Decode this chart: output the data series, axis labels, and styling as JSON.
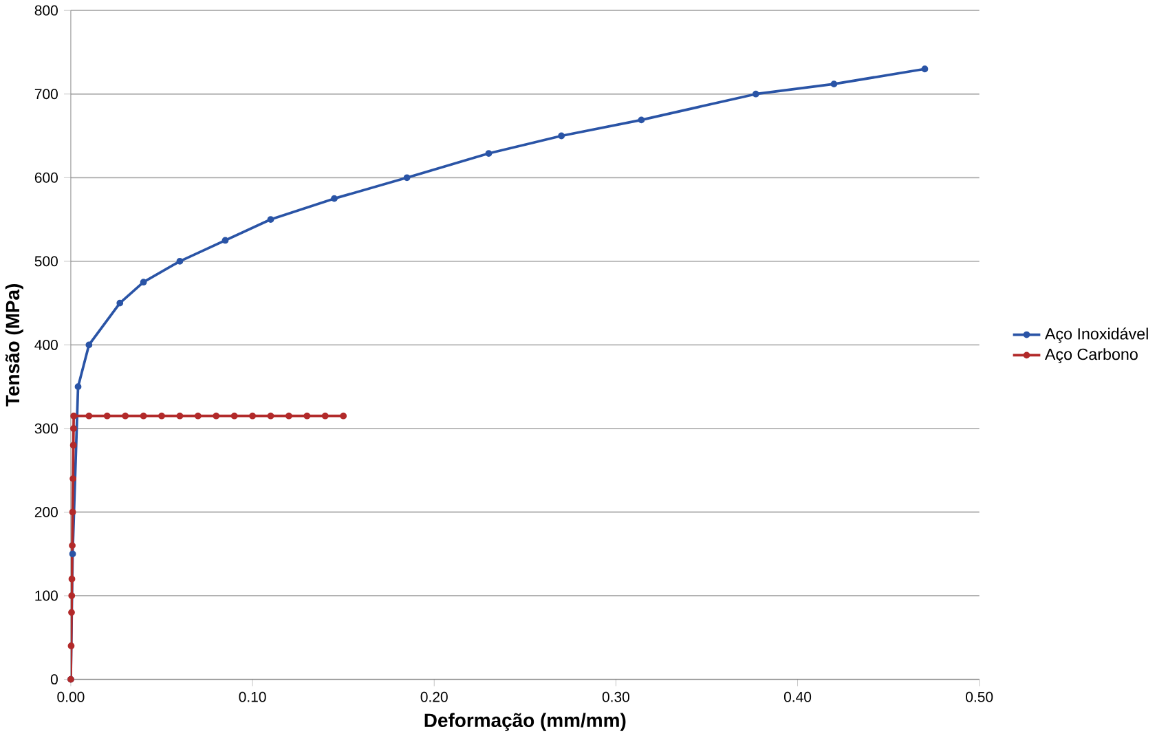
{
  "chart_data": {
    "type": "line",
    "xlabel": "Deformação (mm/mm)",
    "ylabel": "Tensão (MPa)",
    "xlim": [
      0,
      0.5
    ],
    "xticks": [
      {
        "value": 0,
        "label": "0.00"
      },
      {
        "value": 0.1,
        "label": "0.10"
      },
      {
        "value": 0.2,
        "label": "0.20"
      },
      {
        "value": 0.3,
        "label": "0.30"
      },
      {
        "value": 0.4,
        "label": "0.40"
      },
      {
        "value": 0.5,
        "label": "0.50"
      }
    ],
    "ylim": [
      0,
      800
    ],
    "yticks": [
      0,
      100,
      200,
      300,
      400,
      500,
      600,
      700,
      800
    ],
    "grid": "y",
    "legend": "right",
    "marker": "circle",
    "series": [
      {
        "name": "Aço Inoxidável",
        "color": "#2a54a6",
        "x": [
          0,
          0.001,
          0.002,
          0.004,
          0.01,
          0.027,
          0.04,
          0.06,
          0.085,
          0.11,
          0.145,
          0.185,
          0.23,
          0.27,
          0.314,
          0.377,
          0.42,
          0.47
        ],
        "values": [
          0,
          150,
          null,
          350,
          400,
          450,
          475,
          500,
          525,
          550,
          575,
          600,
          629,
          650,
          669,
          700,
          712,
          730
        ]
      },
      {
        "name": "Aço Carbono",
        "color": "#b22a2a",
        "x": [
          0,
          0.0002,
          0.0004,
          0.0005,
          0.0006,
          0.0008,
          0.001,
          0.0012,
          0.0014,
          0.0015,
          0.0016,
          0.01,
          0.02,
          0.03,
          0.04,
          0.05,
          0.06,
          0.07,
          0.08,
          0.09,
          0.1,
          0.11,
          0.12,
          0.13,
          0.14,
          0.15
        ],
        "values": [
          0,
          40,
          80,
          100,
          120,
          160,
          200,
          240,
          280,
          300,
          315,
          315,
          315,
          315,
          315,
          315,
          315,
          315,
          315,
          315,
          315,
          315,
          315,
          315,
          315,
          315
        ]
      }
    ]
  }
}
